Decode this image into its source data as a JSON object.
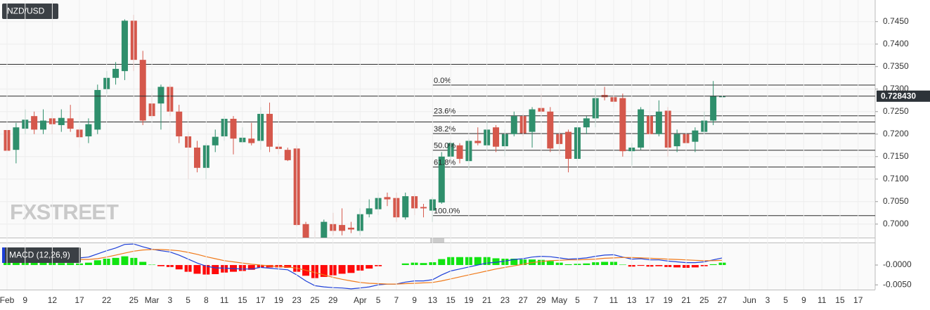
{
  "watermark": "FXSTREET",
  "chart_data": [
    {
      "type": "candlestick",
      "title": "NZD/USD",
      "categories": [
        "Feb",
        null,
        "9",
        null,
        null,
        "12",
        null,
        null,
        "17",
        null,
        null,
        "22",
        null,
        null,
        "25",
        null,
        "Mar",
        null,
        "3",
        null,
        "5",
        null,
        "8",
        null,
        "11",
        null,
        "15",
        null,
        "17",
        null,
        "19",
        null,
        "23",
        null,
        "25",
        null,
        "29",
        null,
        null,
        "Apr",
        null,
        "5",
        null,
        "7",
        null,
        "9",
        null,
        "13",
        null,
        "15",
        null,
        "19",
        null,
        "21",
        null,
        "23",
        null,
        "27",
        null,
        "29",
        null,
        "May",
        null,
        "5",
        null,
        "7",
        null,
        "11",
        null,
        "13",
        null,
        "17",
        null,
        "19",
        null,
        "21",
        null,
        "25",
        null,
        "27",
        null,
        null,
        "Jun",
        null,
        "3",
        null,
        "5",
        null,
        "9",
        null,
        "11",
        null,
        "15",
        null,
        "17"
      ],
      "open": [
        0.7209,
        0.7165,
        0.7212,
        0.724,
        0.721,
        0.7235,
        0.722,
        0.7235,
        0.721,
        0.7195,
        0.721,
        0.73,
        0.7325,
        0.734,
        0.7452,
        0.7365,
        0.7268,
        0.7268,
        0.7305,
        0.725,
        0.7195,
        0.717,
        0.7125,
        0.7175,
        0.7195,
        0.7234,
        0.7182,
        0.719,
        0.7185,
        0.7245,
        0.7172,
        0.7165,
        0.7168,
        0.7,
        0.697,
        0.6965,
        0.7,
        0.6998,
        0.6992,
        0.6985,
        0.7022,
        0.7033,
        0.706,
        0.7058,
        0.7015,
        0.7062,
        0.7038,
        0.703,
        0.7048,
        0.715,
        0.7175,
        0.714,
        0.7185,
        0.7175,
        0.7215,
        0.7173,
        0.72,
        0.724,
        0.7205,
        0.7258,
        0.725,
        0.72,
        0.7205,
        0.7145,
        0.7215,
        0.7235,
        0.7287,
        0.7282,
        0.728,
        0.7162,
        0.717,
        0.724,
        0.72,
        0.7252,
        0.7173,
        0.72,
        0.7183,
        0.7205,
        0.723,
        0.7282,
        null,
        null,
        null,
        null,
        null,
        null,
        null,
        null,
        null,
        null,
        null,
        null,
        null,
        null,
        null
      ],
      "high": [
        0.7225,
        0.7225,
        0.7255,
        0.725,
        0.7255,
        0.725,
        0.7255,
        0.7265,
        0.7215,
        0.7235,
        0.731,
        0.734,
        0.736,
        0.7455,
        0.7465,
        0.7385,
        0.729,
        0.731,
        0.731,
        0.7265,
        0.7205,
        0.7185,
        0.718,
        0.721,
        0.724,
        0.724,
        0.7215,
        0.7225,
        0.726,
        0.727,
        0.718,
        0.717,
        0.7175,
        0.7005,
        0.6985,
        0.701,
        0.7025,
        0.7035,
        0.7005,
        0.7035,
        0.7055,
        0.707,
        0.707,
        0.707,
        0.707,
        0.7068,
        0.7045,
        0.706,
        0.716,
        0.7185,
        0.718,
        0.719,
        0.7215,
        0.723,
        0.722,
        0.721,
        0.725,
        0.7245,
        0.726,
        0.729,
        0.726,
        0.7205,
        0.721,
        0.722,
        0.724,
        0.73,
        0.7305,
        0.7295,
        0.729,
        0.718,
        0.726,
        0.7255,
        0.7275,
        0.726,
        0.721,
        0.7225,
        0.7215,
        0.725,
        0.7318,
        0.729,
        null,
        null,
        null,
        null,
        null,
        null,
        null,
        null,
        null,
        null,
        null,
        null,
        null,
        null,
        null
      ],
      "low": [
        0.714,
        0.7135,
        0.72,
        0.72,
        0.72,
        0.72,
        0.7205,
        0.7205,
        0.717,
        0.718,
        0.72,
        0.729,
        0.731,
        0.732,
        0.734,
        0.722,
        0.7235,
        0.721,
        0.724,
        0.718,
        0.71,
        0.7115,
        0.71,
        0.716,
        0.7185,
        0.7155,
        0.718,
        0.7175,
        0.7165,
        0.716,
        0.7155,
        0.714,
        0.6995,
        0.696,
        0.695,
        0.696,
        0.6975,
        0.6975,
        0.698,
        0.6975,
        0.7015,
        0.702,
        0.704,
        0.7005,
        0.701,
        0.702,
        0.7015,
        0.7005,
        0.7045,
        0.714,
        0.7135,
        0.712,
        0.7175,
        0.7165,
        0.716,
        0.715,
        0.7195,
        0.7195,
        0.717,
        0.7245,
        0.716,
        0.7155,
        0.7115,
        0.714,
        0.72,
        0.7215,
        0.7275,
        0.726,
        0.715,
        0.713,
        0.7165,
        0.719,
        0.7195,
        0.715,
        0.716,
        0.7155,
        0.716,
        0.72,
        0.722,
        0.7278,
        null,
        null,
        null,
        null,
        null,
        null,
        null,
        null,
        null,
        null,
        null,
        null,
        null,
        null,
        null
      ],
      "close": [
        0.7163,
        0.7215,
        0.7232,
        0.721,
        0.723,
        0.7222,
        0.7236,
        0.7212,
        0.7193,
        0.7222,
        0.7298,
        0.7325,
        0.7345,
        0.7452,
        0.7365,
        0.723,
        0.724,
        0.7305,
        0.725,
        0.7195,
        0.717,
        0.7125,
        0.7175,
        0.7194,
        0.7234,
        0.719,
        0.7192,
        0.718,
        0.7245,
        0.7172,
        0.7167,
        0.7142,
        0.6998,
        0.6968,
        0.6962,
        0.7005,
        0.6985,
        0.6985,
        0.6988,
        0.7022,
        0.7035,
        0.7058,
        0.7055,
        0.7015,
        0.7062,
        0.7035,
        0.7035,
        0.7055,
        0.715,
        0.718,
        0.7145,
        0.7185,
        0.718,
        0.721,
        0.7172,
        0.72,
        0.724,
        0.7202,
        0.7255,
        0.725,
        0.7168,
        0.7178,
        0.7145,
        0.7215,
        0.7235,
        0.728,
        0.7282,
        0.7272,
        0.7162,
        0.717,
        0.7255,
        0.72,
        0.725,
        0.717,
        0.72,
        0.718,
        0.7208,
        0.723,
        0.7285,
        0.72843,
        null,
        null,
        null,
        null,
        null,
        null,
        null,
        null,
        null,
        null,
        null,
        null,
        null,
        null,
        null
      ],
      "up_color": "#2f8f6c",
      "down_color": "#d5584c",
      "ylim": [
        0.697,
        0.7498
      ],
      "yticks": [
        {
          "value": 0.7,
          "label": "0.7000"
        },
        {
          "value": 0.705,
          "label": "0.7050"
        },
        {
          "value": 0.71,
          "label": "0.7100"
        },
        {
          "value": 0.715,
          "label": "0.7150"
        },
        {
          "value": 0.72,
          "label": "0.7200"
        },
        {
          "value": 0.725,
          "label": "0.7250"
        },
        {
          "value": 0.73,
          "label": "0.7300"
        },
        {
          "value": 0.735,
          "label": "0.7350"
        },
        {
          "value": 0.74,
          "label": "0.7400"
        },
        {
          "value": 0.745,
          "label": "0.7450"
        }
      ],
      "grid": true,
      "last_price": {
        "value": 0.72843,
        "label": "0.728430"
      },
      "levels": [
        0.7355,
        0.7227
      ],
      "fibonacci": {
        "labels": [
          "0.0%",
          "23.6%",
          "38.2%",
          "50.0%",
          "61.8%",
          "100.0%"
        ],
        "values": [
          0.7309,
          0.72406,
          0.72012,
          0.7164,
          0.71268,
          0.70188
        ]
      }
    },
    {
      "type": "macd",
      "title": "MACD (12,26,9)",
      "ylim": [
        -0.0062,
        0.0055
      ],
      "yticks": [
        {
          "value": 0,
          "label": "-0.0000"
        },
        {
          "value": -0.005,
          "label": "-0.0050"
        }
      ],
      "series": [
        {
          "color": "#1d3fd8",
          "values": [
            0.0018,
            0.0018,
            0.0019,
            0.0019,
            0.002,
            0.002,
            0.0019,
            0.0019,
            0.0018,
            0.002,
            0.0028,
            0.0036,
            0.0043,
            0.0052,
            0.0053,
            0.0046,
            0.004,
            0.0036,
            0.0033,
            0.0025,
            0.0015,
            0.0005,
            -0.0003,
            -0.0007,
            -0.0008,
            -0.0009,
            -0.001,
            -0.001,
            -0.0006,
            -0.0008,
            -0.001,
            -0.0012,
            -0.0025,
            -0.004,
            -0.0052,
            -0.0055,
            -0.0057,
            -0.0058,
            -0.006,
            -0.0058,
            -0.0055,
            -0.005,
            -0.0048,
            -0.0048,
            -0.0043,
            -0.004,
            -0.004,
            -0.0037,
            -0.0025,
            -0.0015,
            -0.001,
            -0.0005,
            0,
            0.0005,
            0.0007,
            0.001,
            0.0014,
            0.0016,
            0.002,
            0.0022,
            0.0021,
            0.0018,
            0.0015,
            0.0016,
            0.0018,
            0.0022,
            0.0025,
            0.0026,
            0.002,
            0.0015,
            0.0016,
            0.0013,
            0.0013,
            0.001,
            0.0008,
            0.0006,
            0.0006,
            0.0008,
            0.0013,
            0.0018,
            null,
            null,
            null,
            null,
            null,
            null,
            null,
            null,
            null,
            null,
            null,
            null,
            null,
            null,
            null
          ]
        },
        {
          "color": "#f07a1a",
          "values": [
            0.0012,
            0.0012,
            0.0013,
            0.0013,
            0.0013,
            0.0014,
            0.0014,
            0.0014,
            0.0014,
            0.0014,
            0.0016,
            0.002,
            0.0025,
            0.003,
            0.0035,
            0.0038,
            0.0039,
            0.0039,
            0.0038,
            0.0036,
            0.0032,
            0.0027,
            0.0021,
            0.0016,
            0.0011,
            0.0008,
            0.0005,
            0.0002,
            0,
            -0.0002,
            -0.0004,
            -0.0005,
            -0.0008,
            -0.0013,
            -0.0019,
            -0.0025,
            -0.0031,
            -0.0036,
            -0.004,
            -0.0044,
            -0.0046,
            -0.0047,
            -0.0048,
            -0.0048,
            -0.0047,
            -0.0046,
            -0.0045,
            -0.0044,
            -0.004,
            -0.0035,
            -0.003,
            -0.0025,
            -0.002,
            -0.0015,
            -0.001,
            -0.0006,
            -0.0002,
            0.0002,
            0.0006,
            0.0009,
            0.0011,
            0.0012,
            0.0013,
            0.0013,
            0.0014,
            0.0015,
            0.0017,
            0.0018,
            0.0019,
            0.0019,
            0.0018,
            0.0017,
            0.0016,
            0.0015,
            0.0014,
            0.0013,
            0.0012,
            0.0011,
            0.0011,
            0.0012,
            null,
            null,
            null,
            null,
            null,
            null,
            null,
            null,
            null,
            null,
            null,
            null,
            null,
            null,
            null
          ]
        }
      ],
      "histogram": {
        "up_color": "#11e411",
        "down_color": "#ff0a0a",
        "values": [
          0.0006,
          0.0006,
          0.0006,
          0.0006,
          0.0007,
          0.0006,
          0.0005,
          0.0005,
          0.0004,
          0.0006,
          0.0012,
          0.0016,
          0.0018,
          0.0022,
          0.0018,
          0.0008,
          0.0001,
          -0.0003,
          -0.0005,
          -0.0011,
          -0.0017,
          -0.0022,
          -0.0024,
          -0.0023,
          -0.0019,
          -0.0017,
          -0.0015,
          -0.0012,
          -0.0006,
          -0.0006,
          -0.0006,
          -0.0007,
          -0.0017,
          -0.0027,
          -0.0033,
          -0.003,
          -0.0026,
          -0.0022,
          -0.002,
          -0.0014,
          -0.0009,
          -0.0003,
          0,
          0,
          0.0004,
          0.0006,
          0.0005,
          0.0007,
          0.0015,
          0.002,
          0.002,
          0.002,
          0.002,
          0.002,
          0.0017,
          0.0016,
          0.0016,
          0.0014,
          0.0014,
          0.0013,
          0.001,
          0.0006,
          0.0002,
          0.0003,
          0.0004,
          0.0007,
          0.0008,
          0.0008,
          0.0001,
          -0.0004,
          -0.0002,
          -0.0004,
          -0.0003,
          -0.0005,
          -0.0006,
          -0.0007,
          -0.0006,
          -0.0003,
          0.0002,
          0.0006,
          null,
          null,
          null,
          null,
          null,
          null,
          null,
          null,
          null,
          null,
          null,
          null,
          null,
          null,
          null
        ]
      }
    }
  ]
}
